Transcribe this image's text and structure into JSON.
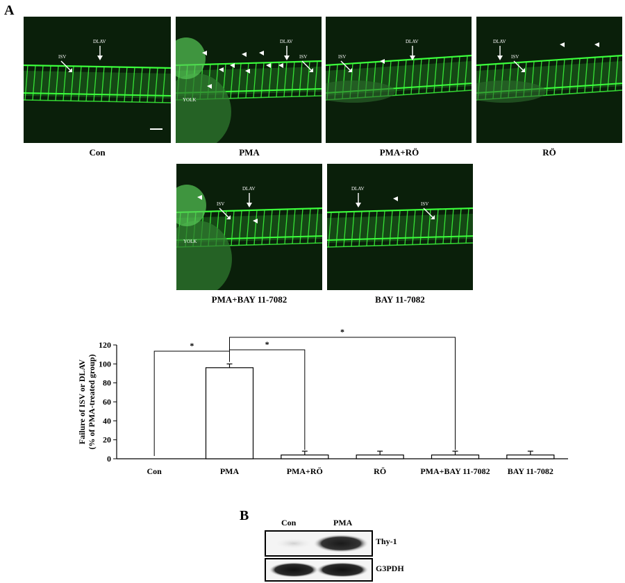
{
  "panel_a": {
    "letter": "A",
    "images": [
      {
        "caption": "Con",
        "labels": {
          "dlav": "DLAV",
          "isv": "ISV"
        },
        "yolk": ""
      },
      {
        "caption": "PMA",
        "labels": {
          "dlav": "DLAV",
          "isv": "ISV"
        },
        "yolk": "YOLK"
      },
      {
        "caption": "PMA+RÖ",
        "labels": {
          "dlav": "DLAV",
          "isv": "ISV"
        },
        "yolk": ""
      },
      {
        "caption": "RÖ",
        "labels": {
          "dlav": "DLAV",
          "isv": "ISV"
        },
        "yolk": ""
      },
      {
        "caption": "PMA+BAY 11-7082",
        "labels": {
          "dlav": "DLAV",
          "isv": "ISV"
        },
        "yolk": "YOLK"
      },
      {
        "caption": "BAY 11-7082",
        "labels": {
          "dlav": "DLAV",
          "isv": "ISV"
        },
        "yolk": ""
      }
    ]
  },
  "chart_data": {
    "type": "bar",
    "title": "",
    "ylabel": "Failure of ISV or DLAV (% of PMA-treated group)",
    "ylabel_line1": "Failure of ISV or DLAV",
    "ylabel_line2": "(% of PMA-treated group)",
    "xlabel": "",
    "ylim": [
      0,
      120
    ],
    "yticks": [
      "0",
      "20",
      "40",
      "60",
      "80",
      "100",
      "120"
    ],
    "categories": [
      "Con",
      "PMA",
      "PMA+RÖ",
      "RÖ",
      "PMA+BAY 11-7082",
      "BAY 11-7082"
    ],
    "values": [
      0,
      96,
      4,
      4,
      4,
      4
    ],
    "error": [
      0,
      4,
      4,
      4,
      4,
      4
    ],
    "significance": [
      {
        "from": "Con",
        "to": "PMA",
        "label": "*"
      },
      {
        "from": "PMA",
        "to": "PMA+RÖ",
        "label": "*"
      },
      {
        "from": "PMA",
        "to": "PMA+BAY 11-7082",
        "label": "*"
      }
    ],
    "grid": false
  },
  "panel_b": {
    "letter": "B",
    "lanes": [
      "Con",
      "PMA"
    ],
    "bands": [
      "Thy-1",
      "G3PDH"
    ]
  },
  "colors": {
    "fluorescence": "#3cff3c",
    "background": "#0a1f0a"
  }
}
